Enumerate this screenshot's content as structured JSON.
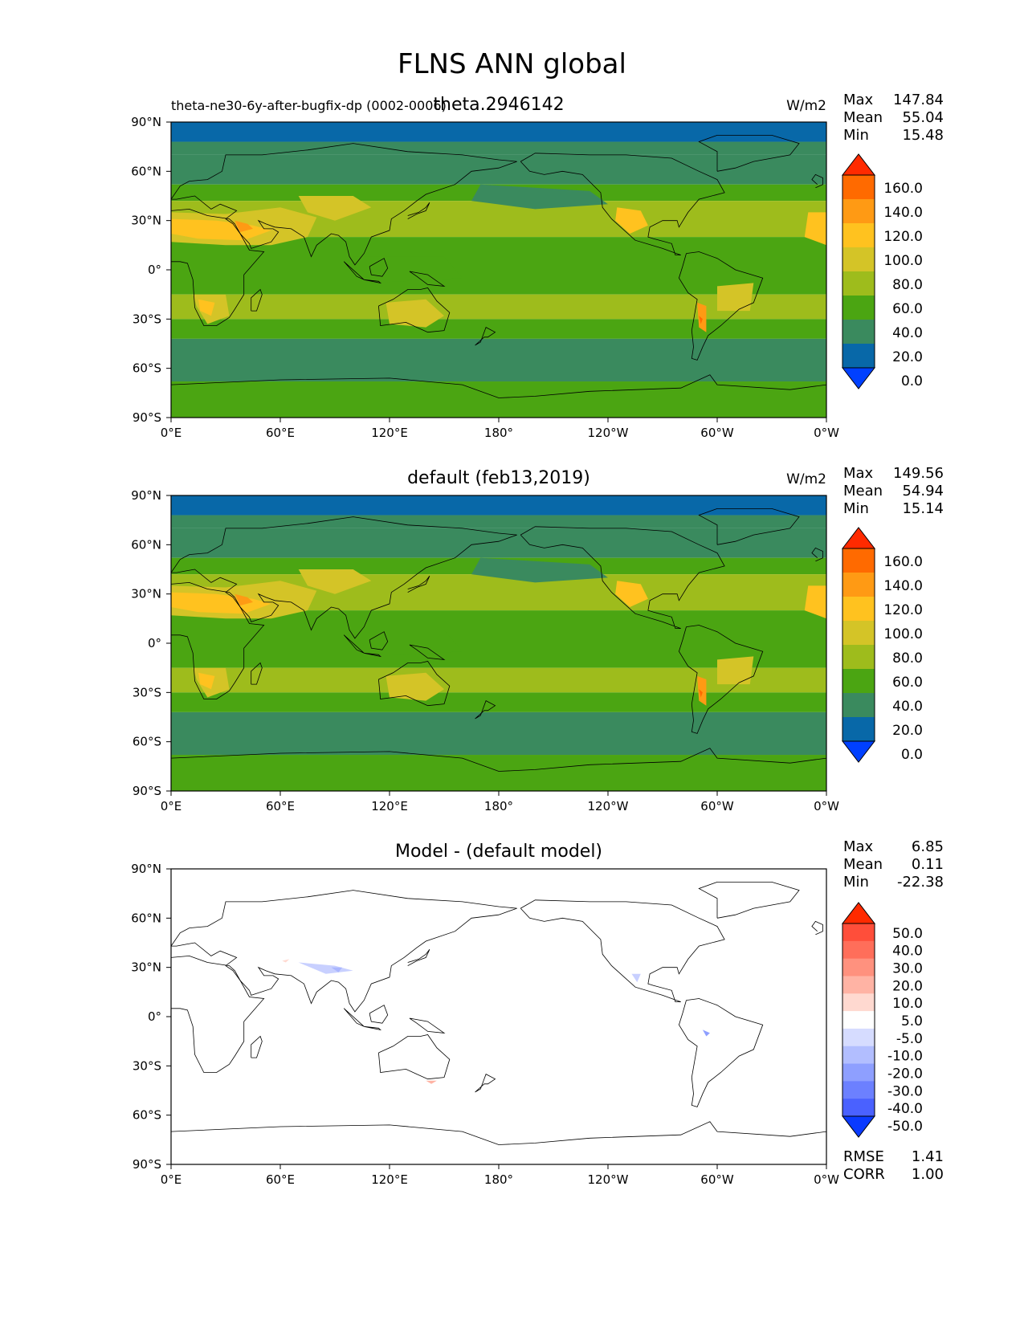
{
  "figure": {
    "title": "FLNS ANN global"
  },
  "panels": [
    {
      "id": "test",
      "title": "theta.2946142",
      "left_label": "theta-ne30-6y-after-bugfix-dp (0002-0006)",
      "units": "W/m2",
      "stats": {
        "max": "147.84",
        "mean": "55.04",
        "min": "15.48"
      },
      "colorbar": {
        "type": "sequential",
        "labels": [
          "160.0",
          "140.0",
          "120.0",
          "100.0",
          "80.0",
          "60.0",
          "40.0",
          "20.0",
          "0.0"
        ],
        "colors": [
          "#ff2a00",
          "#ff6a00",
          "#ff9a14",
          "#ffc21f",
          "#d4c427",
          "#9ebc1c",
          "#4ba512",
          "#3a8a5e",
          "#0868a8",
          "#0040ff"
        ]
      }
    },
    {
      "id": "reference",
      "title": "default (feb13,2019)",
      "units": "W/m2",
      "stats": {
        "max": "149.56",
        "mean": "54.94",
        "min": "15.14"
      },
      "colorbar": {
        "type": "sequential",
        "labels": [
          "160.0",
          "140.0",
          "120.0",
          "100.0",
          "80.0",
          "60.0",
          "40.0",
          "20.0",
          "0.0"
        ],
        "colors": [
          "#ff2a00",
          "#ff6a00",
          "#ff9a14",
          "#ffc21f",
          "#d4c427",
          "#9ebc1c",
          "#4ba512",
          "#3a8a5e",
          "#0868a8",
          "#0040ff"
        ]
      }
    },
    {
      "id": "difference",
      "title": "Model - (default model)",
      "stats": {
        "max": "6.85",
        "mean": "0.11",
        "min": "-22.38"
      },
      "metrics": {
        "rmse_label": "RMSE",
        "rmse": "1.41",
        "corr_label": "CORR",
        "corr": "1.00"
      },
      "colorbar": {
        "type": "diverging",
        "labels": [
          "50.0",
          "40.0",
          "30.0",
          "20.0",
          "10.0",
          "5.0",
          "-5.0",
          "-10.0",
          "-20.0",
          "-30.0",
          "-40.0",
          "-50.0"
        ],
        "colors": [
          "#ff2a00",
          "#ff4e3a",
          "#ff6e5a",
          "#ff917e",
          "#ffb3a4",
          "#ffd9d0",
          "#ffffff",
          "#d6dcff",
          "#b2beff",
          "#8e9fff",
          "#6c80ff",
          "#4a61ff",
          "#0a3aff"
        ]
      }
    }
  ],
  "stat_labels": {
    "max": "Max",
    "mean": "Mean",
    "min": "Min"
  },
  "axes": {
    "x_ticks": [
      "0°E",
      "60°E",
      "120°E",
      "180°",
      "120°W",
      "60°W",
      "0°W"
    ],
    "y_ticks": [
      "90°N",
      "60°N",
      "30°N",
      "0°",
      "30°S",
      "60°S",
      "90°S"
    ],
    "x_range": [
      0,
      360
    ],
    "y_range": [
      -90,
      90
    ]
  }
}
